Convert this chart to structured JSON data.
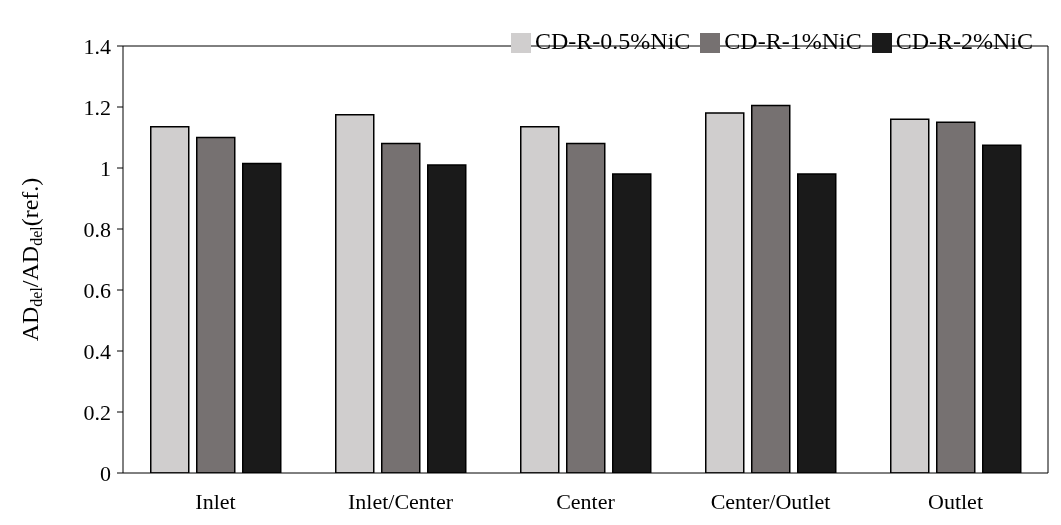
{
  "chart_data": {
    "type": "bar",
    "ylabel": "AD$_{del}$/AD$_{del}$(ref.)",
    "categories": [
      "Inlet",
      "Inlet/Center",
      "Center",
      "Center/Outlet",
      "Outlet"
    ],
    "series": [
      {
        "name": "CD-R-0.5%NiC",
        "color": "#d0cece",
        "values": [
          1.135,
          1.175,
          1.135,
          1.18,
          1.16
        ]
      },
      {
        "name": "CD-R-1%NiC",
        "color": "#767171",
        "values": [
          1.1,
          1.08,
          1.08,
          1.205,
          1.15
        ]
      },
      {
        "name": "CD-R-2%NiC",
        "color": "#1a1a1a",
        "values": [
          1.015,
          1.01,
          0.98,
          0.98,
          1.075
        ]
      }
    ],
    "ylim": [
      0,
      1.4
    ],
    "yticks": [
      0,
      0.2,
      0.4,
      0.6,
      0.8,
      1,
      1.2,
      1.4
    ],
    "grid": false,
    "legend": "top right"
  }
}
